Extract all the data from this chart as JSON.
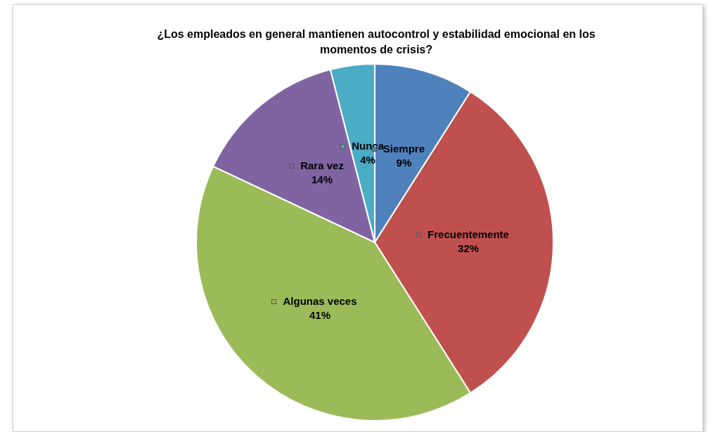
{
  "chart_data": {
    "type": "pie",
    "title": "¿Los empleados en general mantienen  autocontrol y estabilidad emocional en los momentos de crisis?",
    "categories": [
      "Siempre",
      "Frecuentemente",
      "Algunas veces",
      "Rara vez",
      "Nunca"
    ],
    "values": [
      9,
      32,
      41,
      14,
      4
    ],
    "colors": [
      "#4f81bd",
      "#c0504d",
      "#9bbb59",
      "#8064a2",
      "#4bacc6"
    ],
    "value_labels": [
      "9%",
      "32%",
      "41%",
      "14%",
      "4%"
    ],
    "legend": "center"
  }
}
